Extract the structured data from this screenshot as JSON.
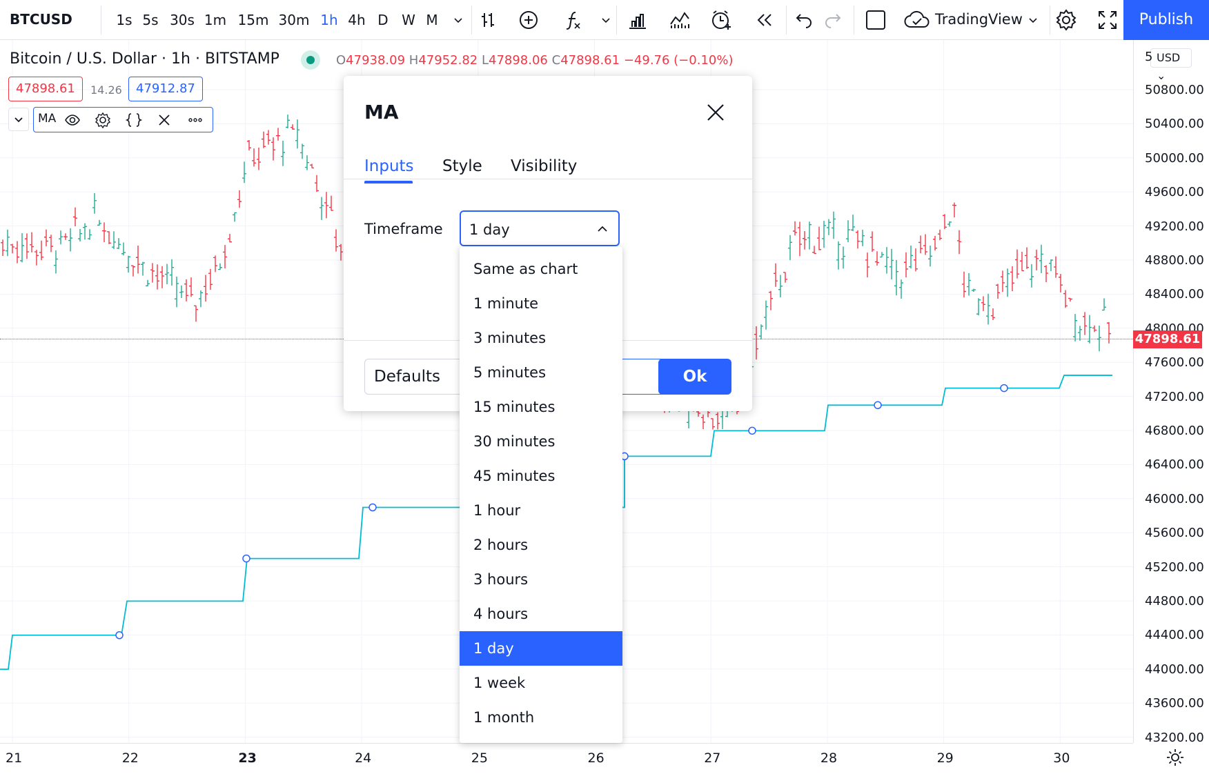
{
  "toolbar": {
    "symbol": "BTCUSD",
    "timeframes": [
      "1s",
      "5s",
      "30s",
      "1m",
      "15m",
      "30m",
      "1h",
      "4h",
      "D",
      "W",
      "M"
    ],
    "active_timeframe": "1h",
    "layout_name": "TradingView",
    "publish_label": "Publish"
  },
  "legend": {
    "title": "Bitcoin / U.S. Dollar · 1h · BITSTAMP",
    "o_label": "O",
    "o_value": "47938.09",
    "h_label": "H",
    "h_value": "47952.82",
    "l_label": "L",
    "l_value": "47898.06",
    "c_label": "C",
    "c_value": "47898.61",
    "change": "−49.76 (−0.10%)",
    "sell_price": "47898.61",
    "spread": "14.26",
    "buy_price": "47912.87"
  },
  "indicator": {
    "name": "MA"
  },
  "price_axis": {
    "currency": "USD",
    "ticks": [
      "50800.00",
      "50400.00",
      "50000.00",
      "49600.00",
      "49200.00",
      "48800.00",
      "48400.00",
      "48000.00",
      "47600.00",
      "47200.00",
      "46800.00",
      "46400.00",
      "46000.00",
      "45600.00",
      "45200.00",
      "44800.00",
      "44400.00",
      "44000.00",
      "43600.00",
      "43200.00"
    ],
    "top_partial": "5",
    "current_price": "47898.61"
  },
  "time_axis": {
    "ticks": [
      "21",
      "22",
      "23",
      "24",
      "25",
      "26",
      "27",
      "28",
      "29",
      "30"
    ]
  },
  "dialog": {
    "title": "MA",
    "tabs": [
      "Inputs",
      "Style",
      "Visibility"
    ],
    "active_tab": "Inputs",
    "timeframe_label": "Timeframe",
    "timeframe_value": "1 day",
    "defaults_label": "Defaults",
    "ok_label": "Ok"
  },
  "dropdown": {
    "options": [
      "Same as chart",
      "1 minute",
      "3 minutes",
      "5 minutes",
      "15 minutes",
      "30 minutes",
      "45 minutes",
      "1 hour",
      "2 hours",
      "3 hours",
      "4 hours",
      "1 day",
      "1 week",
      "1 month"
    ],
    "selected": "1 day"
  },
  "colors": {
    "accent": "#2962ff",
    "up": "#22ab94",
    "down": "#f23645",
    "ma_line": "#00bcd4"
  }
}
